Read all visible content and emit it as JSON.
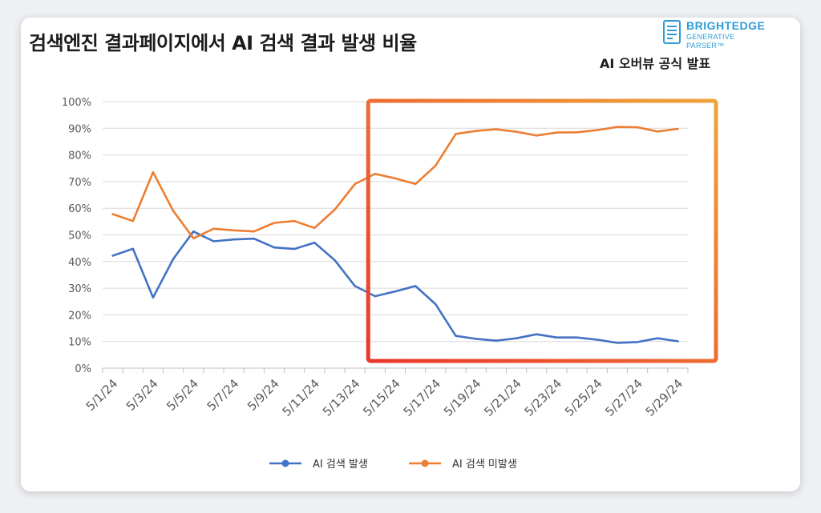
{
  "title": "검색엔진 결과페이지에서 AI 검색 결과 발생 비율",
  "announcement": "AI 오버뷰 공식 발표",
  "logo": {
    "name": "BRIGHTEDGE",
    "sub": "GENERATIVE PARSER™"
  },
  "colors": {
    "series1": "#4472c4",
    "series2": "#ed7d31",
    "highlight_start": "#e9362a",
    "highlight_end": "#efa43a"
  },
  "chart_data": {
    "type": "line",
    "x": [
      "5/1/24",
      "5/2/24",
      "5/3/24",
      "5/4/24",
      "5/5/24",
      "5/6/24",
      "5/7/24",
      "5/8/24",
      "5/9/24",
      "5/10/24",
      "5/11/24",
      "5/12/24",
      "5/13/24",
      "5/14/24",
      "5/15/24",
      "5/16/24",
      "5/17/24",
      "5/18/24",
      "5/19/24",
      "5/20/24",
      "5/21/24",
      "5/22/24",
      "5/23/24",
      "5/24/24",
      "5/25/24",
      "5/26/24",
      "5/27/24",
      "5/28/24",
      "5/29/24"
    ],
    "x_tick_labels": [
      "5/1/24",
      "5/3/24",
      "5/5/24",
      "5/7/24",
      "5/9/24",
      "5/11/24",
      "5/13/24",
      "5/15/24",
      "5/17/24",
      "5/19/24",
      "5/21/24",
      "5/23/24",
      "5/25/24",
      "5/27/24",
      "5/29/24"
    ],
    "y_tick_labels": [
      "0%",
      "10%",
      "20%",
      "30%",
      "40%",
      "50%",
      "60%",
      "70%",
      "80%",
      "90%",
      "100%"
    ],
    "ylim": [
      0,
      100
    ],
    "series": [
      {
        "name": "AI 검색 발생",
        "values": [
          42.2,
          44.8,
          26.5,
          41,
          51.3,
          47.6,
          48.3,
          48.6,
          45.3,
          44.7,
          47.1,
          40.5,
          30.8,
          27,
          28.8,
          30.8,
          24,
          12.1,
          11,
          10.3,
          11.2,
          12.7,
          11.5,
          11.5,
          10.7,
          9.5,
          9.8,
          11.2,
          10.1
        ]
      },
      {
        "name": "AI 검색 미발생",
        "values": [
          57.8,
          55.2,
          73.5,
          59,
          48.7,
          52.3,
          51.7,
          51.3,
          54.5,
          55.2,
          52.6,
          59.5,
          69.1,
          72.9,
          71.2,
          69.1,
          76,
          87.9,
          89,
          89.6,
          88.7,
          87.3,
          88.4,
          88.5,
          89.3,
          90.5,
          90.4,
          88.8,
          89.8
        ]
      }
    ],
    "highlight_range": [
      "5/14/24",
      "5/30/24"
    ]
  }
}
